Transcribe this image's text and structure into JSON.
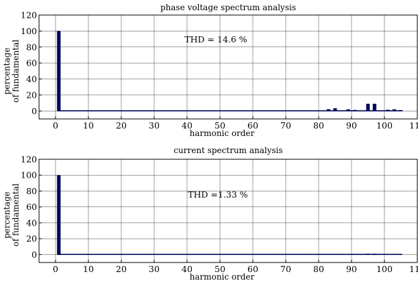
{
  "chart_data": [
    {
      "type": "bar",
      "title": "phase voltage spectrum analysis",
      "xlabel": "harmonic order",
      "ylabel": [
        "percentage",
        "of fundamental"
      ],
      "xlim": [
        -5,
        110
      ],
      "ylim": [
        -10,
        120
      ],
      "xticks": [
        "0",
        "10",
        "20",
        "30",
        "40",
        "50",
        "60",
        "70",
        "80",
        "90",
        "100",
        "110"
      ],
      "yticks": [
        "0",
        "20",
        "40",
        "60",
        "80",
        "100",
        "120"
      ],
      "grid": true,
      "annotation": "THD = 14.6 %",
      "x": [
        1,
        83,
        85,
        89,
        91,
        95,
        97,
        101,
        103,
        105
      ],
      "values": [
        100,
        2.2,
        3.4,
        2.0,
        1.3,
        9.0,
        9.0,
        1.5,
        2.0,
        0.4
      ]
    },
    {
      "type": "bar",
      "title": "current spectrum analysis",
      "xlabel": "harmonic order",
      "ylabel": [
        "percentage",
        "of fundamental"
      ],
      "xlim": [
        -5,
        110
      ],
      "ylim": [
        -10,
        120
      ],
      "xticks": [
        "0",
        "10",
        "20",
        "30",
        "40",
        "50",
        "60",
        "70",
        "80",
        "90",
        "100",
        "110"
      ],
      "yticks": [
        "0",
        "20",
        "40",
        "60",
        "80",
        "100",
        "120"
      ],
      "grid": true,
      "annotation": "THD =1.33 %",
      "x": [
        1,
        95,
        97
      ],
      "values": [
        100,
        0.4,
        0.5
      ]
    }
  ]
}
